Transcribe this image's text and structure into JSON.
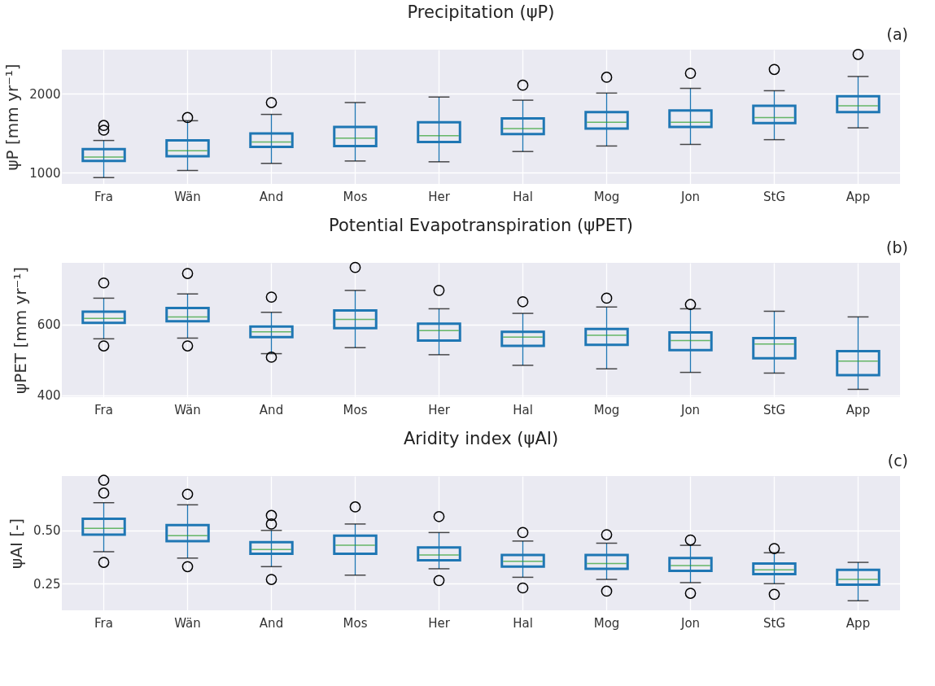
{
  "chart_data": [
    {
      "type": "box",
      "title": "Precipitation (ψP)",
      "ylabel": "ψP [mm yr⁻¹]",
      "annotations": [
        "(a)"
      ],
      "grid": true,
      "categories": [
        "Fra",
        "Wän",
        "And",
        "Mos",
        "Her",
        "Hal",
        "Mog",
        "Jon",
        "StG",
        "App"
      ],
      "ylim": [
        860,
        2560
      ],
      "yticks": [
        1000,
        2000
      ],
      "boxes": [
        {
          "low": 940,
          "q1": 1150,
          "median": 1200,
          "q3": 1300,
          "high": 1410,
          "outliers": [
            1540,
            1600
          ]
        },
        {
          "low": 1030,
          "q1": 1210,
          "median": 1280,
          "q3": 1410,
          "high": 1660,
          "outliers": [
            1700
          ]
        },
        {
          "low": 1120,
          "q1": 1330,
          "median": 1390,
          "q3": 1500,
          "high": 1740,
          "outliers": [
            1890
          ]
        },
        {
          "low": 1150,
          "q1": 1340,
          "median": 1440,
          "q3": 1580,
          "high": 1890
        },
        {
          "low": 1140,
          "q1": 1390,
          "median": 1470,
          "q3": 1640,
          "high": 1960
        },
        {
          "low": 1270,
          "q1": 1490,
          "median": 1560,
          "q3": 1690,
          "high": 1920,
          "outliers": [
            2110
          ]
        },
        {
          "low": 1340,
          "q1": 1560,
          "median": 1640,
          "q3": 1770,
          "high": 2010,
          "outliers": [
            2210
          ]
        },
        {
          "low": 1360,
          "q1": 1580,
          "median": 1640,
          "q3": 1790,
          "high": 2070,
          "outliers": [
            2260
          ]
        },
        {
          "low": 1420,
          "q1": 1630,
          "median": 1700,
          "q3": 1850,
          "high": 2040,
          "outliers": [
            2310
          ]
        },
        {
          "low": 1570,
          "q1": 1770,
          "median": 1850,
          "q3": 1970,
          "high": 2220,
          "outliers": [
            2500
          ]
        }
      ]
    },
    {
      "type": "box",
      "title": "Potential Evapotranspiration (ψPET)",
      "ylabel": "ψPET [mm yr⁻¹]",
      "annotations": [
        "(b)"
      ],
      "grid": true,
      "categories": [
        "Fra",
        "Wän",
        "And",
        "Mos",
        "Her",
        "Hal",
        "Mog",
        "Jon",
        "StG",
        "App"
      ],
      "ylim": [
        395,
        775
      ],
      "yticks": [
        400,
        600
      ],
      "boxes": [
        {
          "low": 560,
          "q1": 605,
          "median": 618,
          "q3": 637,
          "high": 675,
          "outliers": [
            540,
            718
          ]
        },
        {
          "low": 562,
          "q1": 610,
          "median": 622,
          "q3": 647,
          "high": 687,
          "outliers": [
            540,
            745
          ]
        },
        {
          "low": 518,
          "q1": 565,
          "median": 580,
          "q3": 595,
          "high": 635,
          "outliers": [
            508,
            678
          ]
        },
        {
          "low": 535,
          "q1": 590,
          "median": 615,
          "q3": 640,
          "high": 697,
          "outliers": [
            762
          ]
        },
        {
          "low": 515,
          "q1": 555,
          "median": 583,
          "q3": 603,
          "high": 645,
          "outliers": [
            697
          ]
        },
        {
          "low": 485,
          "q1": 540,
          "median": 565,
          "q3": 580,
          "high": 632,
          "outliers": [
            665
          ]
        },
        {
          "low": 475,
          "q1": 543,
          "median": 570,
          "q3": 588,
          "high": 650,
          "outliers": [
            675
          ]
        },
        {
          "low": 465,
          "q1": 528,
          "median": 555,
          "q3": 578,
          "high": 645,
          "outliers": [
            657
          ]
        },
        {
          "low": 463,
          "q1": 505,
          "median": 545,
          "q3": 562,
          "high": 638
        },
        {
          "low": 417,
          "q1": 457,
          "median": 497,
          "q3": 525,
          "high": 622
        }
      ]
    },
    {
      "type": "box",
      "title": "Aridity index (ψAI)",
      "ylabel": "ψAI [-]",
      "annotations": [
        "(c)"
      ],
      "grid": true,
      "categories": [
        "Fra",
        "Wän",
        "And",
        "Mos",
        "Her",
        "Hal",
        "Mog",
        "Jon",
        "StG",
        "App"
      ],
      "ylim": [
        0.125,
        0.755
      ],
      "yticks": [
        {
          "value": 0.25,
          "label": "0.25"
        },
        {
          "value": 0.5,
          "label": "0.50"
        }
      ],
      "boxes": [
        {
          "low": 0.4,
          "q1": 0.48,
          "median": 0.51,
          "q3": 0.555,
          "high": 0.63,
          "outliers": [
            0.35,
            0.675,
            0.735
          ]
        },
        {
          "low": 0.37,
          "q1": 0.45,
          "median": 0.475,
          "q3": 0.525,
          "high": 0.62,
          "outliers": [
            0.33,
            0.67
          ]
        },
        {
          "low": 0.33,
          "q1": 0.39,
          "median": 0.41,
          "q3": 0.445,
          "high": 0.5,
          "outliers": [
            0.27,
            0.53,
            0.57
          ]
        },
        {
          "low": 0.29,
          "q1": 0.39,
          "median": 0.43,
          "q3": 0.475,
          "high": 0.53,
          "outliers": [
            0.61
          ]
        },
        {
          "low": 0.32,
          "q1": 0.36,
          "median": 0.385,
          "q3": 0.42,
          "high": 0.49,
          "outliers": [
            0.265,
            0.565
          ]
        },
        {
          "low": 0.28,
          "q1": 0.33,
          "median": 0.355,
          "q3": 0.385,
          "high": 0.45,
          "outliers": [
            0.23,
            0.49
          ]
        },
        {
          "low": 0.27,
          "q1": 0.32,
          "median": 0.345,
          "q3": 0.385,
          "high": 0.44,
          "outliers": [
            0.215,
            0.48
          ]
        },
        {
          "low": 0.255,
          "q1": 0.31,
          "median": 0.335,
          "q3": 0.37,
          "high": 0.43,
          "outliers": [
            0.205,
            0.455
          ]
        },
        {
          "low": 0.25,
          "q1": 0.295,
          "median": 0.315,
          "q3": 0.345,
          "high": 0.395,
          "outliers": [
            0.2,
            0.415
          ]
        },
        {
          "low": 0.17,
          "q1": 0.245,
          "median": 0.27,
          "q3": 0.315,
          "high": 0.35
        }
      ]
    }
  ]
}
